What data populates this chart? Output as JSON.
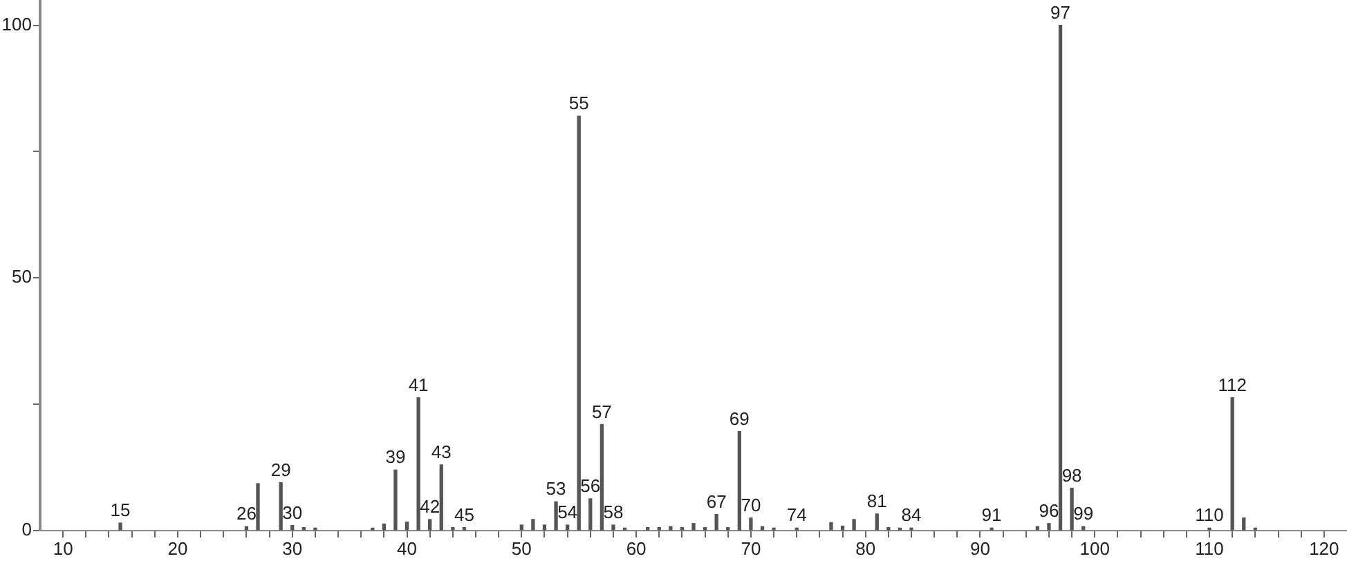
{
  "chart_data": {
    "type": "bar",
    "color": "#555555",
    "x": [
      15,
      26,
      27,
      29,
      30,
      31,
      32,
      37,
      38,
      39,
      40,
      41,
      42,
      43,
      44,
      45,
      50,
      51,
      52,
      53,
      54,
      55,
      56,
      57,
      58,
      59,
      61,
      62,
      63,
      64,
      65,
      66,
      67,
      68,
      69,
      70,
      71,
      72,
      74,
      77,
      78,
      79,
      81,
      82,
      83,
      84,
      91,
      95,
      96,
      97,
      98,
      99,
      110,
      112,
      113,
      114
    ],
    "values": [
      1.5,
      0.8,
      9.3,
      9.5,
      1,
      0.6,
      0.5,
      0.5,
      1.3,
      12,
      1.7,
      26.3,
      2.2,
      13,
      0.6,
      0.6,
      1.1,
      2.2,
      1.1,
      5.7,
      1.1,
      82,
      6.3,
      21,
      1.1,
      0.5,
      0.6,
      0.6,
      0.8,
      0.6,
      1.4,
      0.6,
      3.2,
      0.6,
      19.6,
      2.5,
      0.8,
      0.5,
      0.5,
      1.6,
      0.9,
      2.2,
      3.3,
      0.6,
      0.5,
      0.5,
      0.5,
      0.8,
      1.4,
      100,
      8.4,
      0.8,
      0.5,
      26.3,
      2.5,
      0.5
    ],
    "annotations": [
      {
        "text": "15",
        "x": 15,
        "y": 1.5
      },
      {
        "text": "26",
        "x": 26,
        "y": 0.8
      },
      {
        "text": "29",
        "x": 29,
        "y": 9.5
      },
      {
        "text": "30",
        "x": 30,
        "y": 1
      },
      {
        "text": "39",
        "x": 39,
        "y": 12
      },
      {
        "text": "41",
        "x": 41,
        "y": 26.3
      },
      {
        "text": "42",
        "x": 42,
        "y": 2.2
      },
      {
        "text": "43",
        "x": 43,
        "y": 13
      },
      {
        "text": "45",
        "x": 45,
        "y": 0.6
      },
      {
        "text": "53",
        "x": 53,
        "y": 5.7
      },
      {
        "text": "54",
        "x": 54,
        "y": 1.1
      },
      {
        "text": "55",
        "x": 55,
        "y": 82
      },
      {
        "text": "56",
        "x": 56,
        "y": 6.3
      },
      {
        "text": "57",
        "x": 57,
        "y": 21
      },
      {
        "text": "58",
        "x": 58,
        "y": 1.1
      },
      {
        "text": "67",
        "x": 67,
        "y": 3.2
      },
      {
        "text": "69",
        "x": 69,
        "y": 19.6
      },
      {
        "text": "70",
        "x": 70,
        "y": 2.5
      },
      {
        "text": "74",
        "x": 74,
        "y": 0.5
      },
      {
        "text": "81",
        "x": 81,
        "y": 3.3
      },
      {
        "text": "84",
        "x": 84,
        "y": 0.5
      },
      {
        "text": "91",
        "x": 91,
        "y": 0.5
      },
      {
        "text": "96",
        "x": 96,
        "y": 1.4
      },
      {
        "text": "97",
        "x": 97,
        "y": 100
      },
      {
        "text": "98",
        "x": 98,
        "y": 8.4
      },
      {
        "text": "99",
        "x": 99,
        "y": 0.8
      },
      {
        "text": "110",
        "x": 110,
        "y": 0.5
      },
      {
        "text": "112",
        "x": 112,
        "y": 26.3
      }
    ],
    "xlim": [
      8,
      122
    ],
    "xticks": [
      10,
      {
        "value": 12,
        "label": null
      },
      {
        "value": 14,
        "label": null
      },
      {
        "value": 16,
        "label": null
      },
      {
        "value": 18,
        "label": null
      },
      20,
      {
        "value": 22,
        "label": null
      },
      {
        "value": 24,
        "label": null
      },
      {
        "value": 26,
        "label": null
      },
      {
        "value": 28,
        "label": null
      },
      30,
      {
        "value": 32,
        "label": null
      },
      {
        "value": 34,
        "label": null
      },
      {
        "value": 36,
        "label": null
      },
      {
        "value": 38,
        "label": null
      },
      40,
      {
        "value": 42,
        "label": null
      },
      {
        "value": 44,
        "label": null
      },
      {
        "value": 46,
        "label": null
      },
      {
        "value": 48,
        "label": null
      },
      50,
      {
        "value": 52,
        "label": null
      },
      {
        "value": 54,
        "label": null
      },
      {
        "value": 56,
        "label": null
      },
      {
        "value": 58,
        "label": null
      },
      60,
      {
        "value": 62,
        "label": null
      },
      {
        "value": 64,
        "label": null
      },
      {
        "value": 66,
        "label": null
      },
      {
        "value": 68,
        "label": null
      },
      70,
      {
        "value": 72,
        "label": null
      },
      {
        "value": 74,
        "label": null
      },
      {
        "value": 76,
        "label": null
      },
      {
        "value": 78,
        "label": null
      },
      80,
      {
        "value": 82,
        "label": null
      },
      {
        "value": 84,
        "label": null
      },
      {
        "value": 86,
        "label": null
      },
      {
        "value": 88,
        "label": null
      },
      90,
      {
        "value": 92,
        "label": null
      },
      {
        "value": 94,
        "label": null
      },
      {
        "value": 96,
        "label": null
      },
      {
        "value": 98,
        "label": null
      },
      100,
      {
        "value": 102,
        "label": null
      },
      {
        "value": 104,
        "label": null
      },
      {
        "value": 106,
        "label": null
      },
      {
        "value": 108,
        "label": null
      },
      110,
      {
        "value": 112,
        "label": null
      },
      {
        "value": 114,
        "label": null
      },
      {
        "value": 116,
        "label": null
      },
      {
        "value": 118,
        "label": null
      },
      120
    ],
    "ylim": [
      0,
      105
    ],
    "yticks": [
      0,
      {
        "value": 25,
        "label": null
      },
      50,
      {
        "value": 75,
        "label": null
      },
      100
    ]
  }
}
